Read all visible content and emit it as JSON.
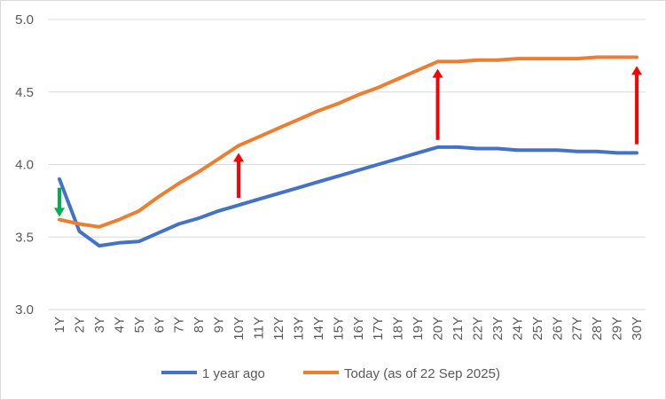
{
  "chart_data": {
    "type": "line",
    "title": "",
    "xlabel": "",
    "ylabel": "",
    "ylim": [
      3.0,
      5.0
    ],
    "yticks": [
      "3.0",
      "3.5",
      "4.0",
      "4.5",
      "5.0"
    ],
    "categories": [
      "1Y",
      "2Y",
      "3Y",
      "4Y",
      "5Y",
      "6Y",
      "7Y",
      "8Y",
      "9Y",
      "10Y",
      "11Y",
      "12Y",
      "13Y",
      "14Y",
      "15Y",
      "16Y",
      "17Y",
      "18Y",
      "19Y",
      "20Y",
      "21Y",
      "22Y",
      "23Y",
      "24Y",
      "25Y",
      "26Y",
      "27Y",
      "28Y",
      "29Y",
      "30Y"
    ],
    "series": [
      {
        "name": "1 year ago",
        "color": "#4472C4",
        "values": [
          3.9,
          3.54,
          3.44,
          3.46,
          3.47,
          3.53,
          3.59,
          3.63,
          3.68,
          3.72,
          3.76,
          3.8,
          3.84,
          3.88,
          3.92,
          3.96,
          4.0,
          4.04,
          4.08,
          4.12,
          4.12,
          4.11,
          4.11,
          4.1,
          4.1,
          4.1,
          4.09,
          4.09,
          4.08,
          4.08
        ]
      },
      {
        "name": "Today (as of 22 Sep 2025)",
        "color": "#ED7D31",
        "values": [
          3.62,
          3.59,
          3.57,
          3.62,
          3.68,
          3.78,
          3.87,
          3.95,
          4.04,
          4.13,
          4.19,
          4.25,
          4.31,
          4.37,
          4.42,
          4.48,
          4.53,
          4.59,
          4.65,
          4.71,
          4.71,
          4.72,
          4.72,
          4.73,
          4.73,
          4.73,
          4.73,
          4.74,
          4.74,
          4.74
        ]
      }
    ],
    "annotations": [
      {
        "type": "arrow",
        "direction": "down",
        "at": "1Y",
        "from": 3.84,
        "to": 3.64,
        "color": "#00B050"
      },
      {
        "type": "arrow",
        "direction": "up",
        "at": "10Y",
        "from": 3.77,
        "to": 4.08,
        "color": "#FF0000"
      },
      {
        "type": "arrow",
        "direction": "up",
        "at": "20Y",
        "from": 4.17,
        "to": 4.66,
        "color": "#FF0000"
      },
      {
        "type": "arrow",
        "direction": "up",
        "at": "30Y",
        "from": 4.14,
        "to": 4.68,
        "color": "#FF0000"
      }
    ],
    "legend_position": "bottom"
  }
}
